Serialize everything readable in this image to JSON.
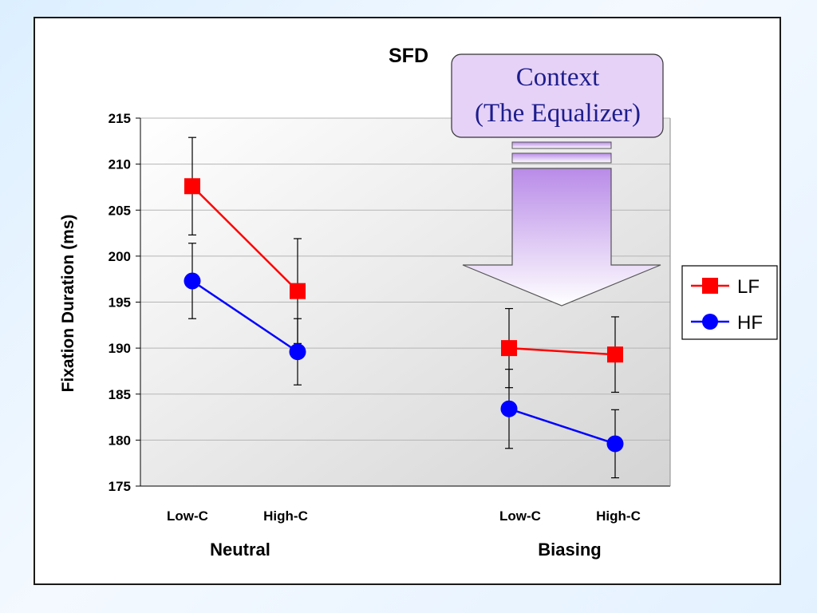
{
  "colors": {
    "lf": "#ff0000",
    "hf": "#0000ff",
    "callout_fill": "#e6d2f7",
    "arrow_top": "#b98be8",
    "arrow_bottom": "#ffffff"
  },
  "chart_data": {
    "type": "line",
    "title": "SFD",
    "ylabel": "Fixation Duration (ms)",
    "xlabel": "",
    "ylim": [
      175,
      215
    ],
    "y_ticks": [
      175,
      180,
      185,
      190,
      195,
      200,
      205,
      210,
      215
    ],
    "grid": true,
    "legend_position": "right",
    "groups": [
      {
        "name": "Neutral",
        "categories": [
          "Low-C",
          "High-C"
        ]
      },
      {
        "name": "Biasing",
        "categories": [
          "Low-C",
          "High-C"
        ]
      }
    ],
    "series": [
      {
        "name": "LF",
        "color": "#ff0000",
        "marker": "square",
        "values": [
          [
            207.6,
            196.2
          ],
          [
            190.0,
            189.3
          ]
        ],
        "error": [
          [
            5.3,
            5.7
          ],
          [
            4.3,
            4.1
          ]
        ]
      },
      {
        "name": "HF",
        "color": "#0000ff",
        "marker": "circle",
        "values": [
          [
            197.3,
            189.6
          ],
          [
            183.4,
            179.6
          ]
        ],
        "error": [
          [
            4.1,
            3.6
          ],
          [
            4.3,
            3.7
          ]
        ]
      }
    ]
  },
  "callout": {
    "line1": "Context",
    "line2": "(The Equalizer)"
  }
}
